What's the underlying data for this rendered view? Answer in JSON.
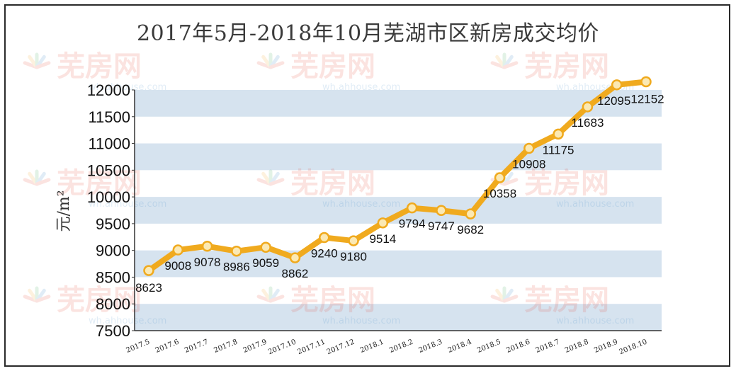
{
  "chart_data": {
    "type": "line",
    "title": "2017年5月-2018年10月芜湖市区新房成交均价",
    "ylabel": "元/m²",
    "xlabel": "",
    "ylim": [
      7500,
      12000
    ],
    "yticks": [
      7500,
      8000,
      8500,
      9000,
      9500,
      10000,
      10500,
      11000,
      11500,
      12000
    ],
    "grid": "alternating horizontal bands",
    "legend": "none",
    "categories": [
      "2017.5",
      "2017.6",
      "2017.7",
      "2017.8",
      "2017.9",
      "2017.10",
      "2017.11",
      "2017.12",
      "2018.1",
      "2018.2",
      "2018.3",
      "2018.4",
      "2018.5",
      "2018.6",
      "2018.7",
      "2018.8",
      "2018.9",
      "2018.10"
    ],
    "series": [
      {
        "values": [
          8623,
          9008,
          9078,
          8986,
          9059,
          8862,
          9240,
          9180,
          9514,
          9794,
          9747,
          9682,
          10358,
          10908,
          11175,
          11683,
          12095,
          12152
        ]
      }
    ],
    "colors": {
      "line": "#f0aa1e",
      "marker_fill": "#fbe9b4",
      "band": "#d6e3ef",
      "axis": "#333333"
    }
  },
  "watermark": {
    "brand": "芜房网",
    "site": "wh.ahhouse.com"
  }
}
